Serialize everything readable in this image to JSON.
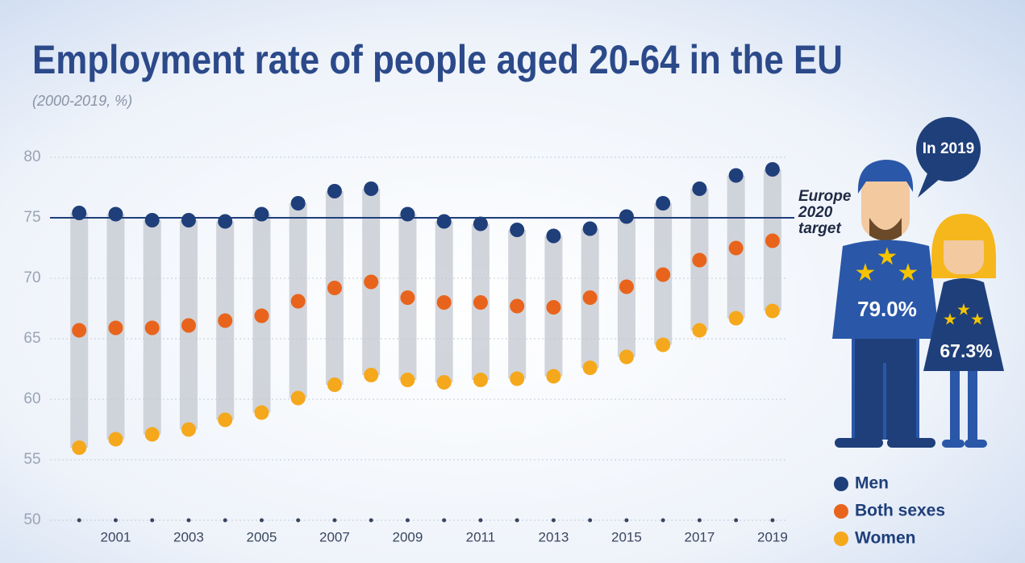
{
  "chart_data": {
    "type": "dot-range",
    "title": "Employment rate of people aged 20-64 in the EU",
    "subtitle": "(2000-2019, %)",
    "x": [
      2000,
      2001,
      2002,
      2003,
      2004,
      2005,
      2006,
      2007,
      2008,
      2009,
      2010,
      2011,
      2012,
      2013,
      2014,
      2015,
      2016,
      2017,
      2018,
      2019
    ],
    "xlim": [
      1999.2,
      2019.4
    ],
    "xticks": [
      2001,
      2003,
      2005,
      2007,
      2009,
      2011,
      2013,
      2015,
      2017,
      2019
    ],
    "ylim": [
      50,
      80
    ],
    "yticks": [
      50,
      55,
      60,
      65,
      70,
      75,
      80
    ],
    "grid": true,
    "legend": "bottom-right",
    "series": [
      {
        "name": "Men",
        "color": "#1f3f7a",
        "values": [
          75.4,
          75.3,
          74.8,
          74.8,
          74.7,
          75.3,
          76.2,
          77.2,
          77.4,
          75.3,
          74.7,
          74.5,
          74.0,
          73.5,
          74.1,
          75.1,
          76.2,
          77.4,
          78.5,
          79.0
        ]
      },
      {
        "name": "Both sexes",
        "color": "#e8641c",
        "values": [
          65.7,
          65.9,
          65.9,
          66.1,
          66.5,
          66.9,
          68.1,
          69.2,
          69.7,
          68.4,
          68.0,
          68.0,
          67.7,
          67.6,
          68.4,
          69.3,
          70.3,
          71.5,
          72.5,
          73.1
        ]
      },
      {
        "name": "Women",
        "color": "#f5a81c",
        "values": [
          56.0,
          56.7,
          57.1,
          57.5,
          58.3,
          58.9,
          60.1,
          61.2,
          62.0,
          61.6,
          61.4,
          61.6,
          61.7,
          61.9,
          62.6,
          63.5,
          64.5,
          65.7,
          66.7,
          67.3
        ]
      }
    ],
    "target": {
      "value": 75,
      "label": [
        "Europe",
        "2020",
        "target"
      ]
    },
    "callout": {
      "title": "In 2019",
      "men": "79.0%",
      "women": "67.3%"
    }
  }
}
